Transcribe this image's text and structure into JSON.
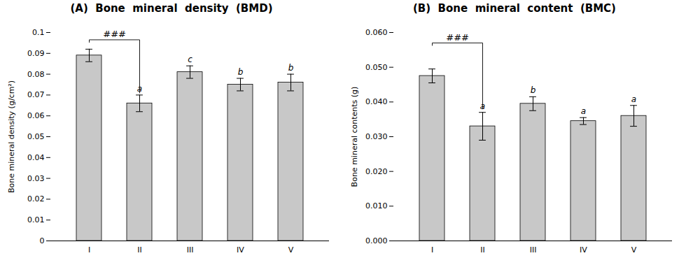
{
  "chart_data": [
    {
      "type": "bar",
      "title": "(A)  Bone  mineral  density  (BMD)",
      "ylabel": "Bone mineral density (g/cm²)",
      "categories": [
        "I",
        "II",
        "III",
        "IV",
        "V"
      ],
      "values": [
        0.089,
        0.066,
        0.081,
        0.075,
        0.076
      ],
      "errors": [
        0.003,
        0.004,
        0.003,
        0.003,
        0.004
      ],
      "color": "#c8c8c8",
      "ylim": [
        0,
        0.1
      ],
      "yticks": [
        0,
        0.01,
        0.02,
        0.03,
        0.04,
        0.05,
        0.06,
        0.07,
        0.08,
        0.09,
        0.1
      ],
      "annotations": [
        {
          "category": "II",
          "text": "a"
        },
        {
          "category": "III",
          "text": "c"
        },
        {
          "category": "IV",
          "text": "b"
        },
        {
          "category": "V",
          "text": "b"
        },
        {
          "type": "bracket",
          "text": "###",
          "x1": "I",
          "x2": "II",
          "y_top": 0.0965,
          "y_down": 0.071
        }
      ]
    },
    {
      "type": "bar",
      "title": "(B)  Bone  mineral  content  (BMC)",
      "ylabel": "Bone mineral contents (g)",
      "categories": [
        "I",
        "II",
        "III",
        "IV",
        "V"
      ],
      "values": [
        0.0475,
        0.033,
        0.0395,
        0.0345,
        0.036
      ],
      "errors": [
        0.002,
        0.004,
        0.002,
        0.001,
        0.003
      ],
      "color": "#c8c8c8",
      "ylim": [
        0,
        0.06
      ],
      "yticks": [
        {
          "value": 0,
          "label": "0.000"
        },
        {
          "value": 0.01,
          "label": "0.010"
        },
        {
          "value": 0.02,
          "label": "0.020"
        },
        {
          "value": 0.03,
          "label": "0.030"
        },
        {
          "value": 0.04,
          "label": "0.040"
        },
        {
          "value": 0.05,
          "label": "0.050"
        },
        {
          "value": 0.06,
          "label": "0.060"
        }
      ],
      "annotations": [
        {
          "category": "II",
          "text": "a"
        },
        {
          "category": "III",
          "text": "b"
        },
        {
          "category": "IV",
          "text": "a"
        },
        {
          "category": "V",
          "text": "a"
        },
        {
          "type": "bracket",
          "text": "###",
          "x1": "I",
          "x2": "II",
          "y_top": 0.057,
          "y_down": 0.038
        }
      ]
    }
  ]
}
